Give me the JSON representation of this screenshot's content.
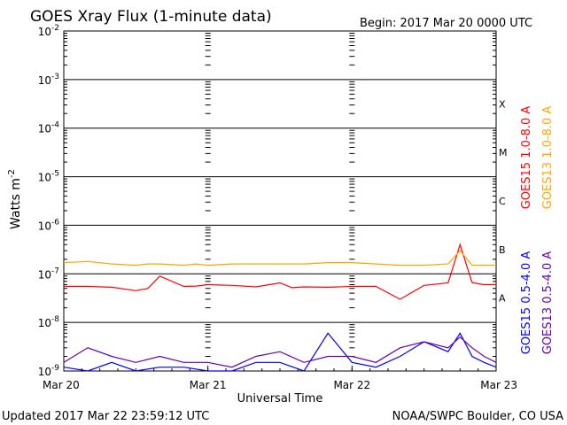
{
  "chart_data": {
    "type": "line",
    "title": "GOES Xray Flux (1-minute data)",
    "begin_label": "Begin:  2017 Mar 20 0000 UTC",
    "xlabel": "Universal Time",
    "ylabel": "Watts m",
    "ylabel_sup": "-2",
    "y_scale": "log",
    "ylim": [
      1e-09,
      0.01
    ],
    "y_ticks": [
      {
        "base": "10",
        "exp": "-2"
      },
      {
        "base": "10",
        "exp": "-3"
      },
      {
        "base": "10",
        "exp": "-4"
      },
      {
        "base": "10",
        "exp": "-5"
      },
      {
        "base": "10",
        "exp": "-6"
      },
      {
        "base": "10",
        "exp": "-7"
      },
      {
        "base": "10",
        "exp": "-8"
      },
      {
        "base": "10",
        "exp": "-9"
      }
    ],
    "x_range": [
      "2017-03-20 00:00",
      "2017-03-23 00:00"
    ],
    "x_ticks": [
      "Mar 20",
      "Mar 21",
      "Mar 22",
      "Mar 23"
    ],
    "flare_classes": [
      {
        "label": "X",
        "value": 0.0001
      },
      {
        "label": "M",
        "value": 1e-05
      },
      {
        "label": "C",
        "value": 1e-06
      },
      {
        "label": "B",
        "value": 1e-07
      },
      {
        "label": "A",
        "value": 1e-08
      }
    ],
    "series": [
      {
        "name": "GOES15 1.0-8.0 A",
        "color": "#ff0000",
        "x_hours": [
          0,
          4,
          8,
          12,
          14,
          16,
          20,
          22,
          24,
          28,
          32,
          36,
          38,
          40,
          44,
          48,
          52,
          56,
          60,
          64,
          66,
          68,
          70,
          72
        ],
        "values": [
          5.5e-08,
          5.5e-08,
          5.3e-08,
          4.5e-08,
          5e-08,
          9e-08,
          5.5e-08,
          5.6e-08,
          6e-08,
          5.8e-08,
          5.4e-08,
          6.5e-08,
          5.2e-08,
          5.4e-08,
          5.3e-08,
          5.5e-08,
          5.5e-08,
          3e-08,
          5.8e-08,
          6.5e-08,
          4e-07,
          6.6e-08,
          6e-08,
          6e-08
        ]
      },
      {
        "name": "GOES13 1.0-8.0 A",
        "color": "#ffa500",
        "x_hours": [
          0,
          4,
          8,
          12,
          14,
          16,
          20,
          22,
          24,
          28,
          32,
          36,
          38,
          40,
          44,
          48,
          52,
          56,
          60,
          64,
          66,
          68,
          70,
          72
        ],
        "values": [
          1.7e-07,
          1.8e-07,
          1.6e-07,
          1.5e-07,
          1.6e-07,
          1.6e-07,
          1.5e-07,
          1.6e-07,
          1.5e-07,
          1.6e-07,
          1.6e-07,
          1.6e-07,
          1.6e-07,
          1.6e-07,
          1.7e-07,
          1.7e-07,
          1.6e-07,
          1.5e-07,
          1.5e-07,
          1.6e-07,
          3e-07,
          1.5e-07,
          1.5e-07,
          1.5e-07
        ]
      },
      {
        "name": "GOES15 0.5-4.0 A",
        "color": "#0000ff",
        "x_hours": [
          0,
          4,
          8,
          12,
          16,
          20,
          24,
          28,
          32,
          36,
          40,
          44,
          48,
          52,
          56,
          60,
          64,
          66,
          68,
          70,
          72
        ],
        "values": [
          1.2e-09,
          1e-09,
          1.5e-09,
          1e-09,
          1.2e-09,
          1.2e-09,
          1e-09,
          1e-09,
          1.5e-09,
          1.5e-09,
          1e-09,
          6e-09,
          1.5e-09,
          1.2e-09,
          2e-09,
          4e-09,
          2.5e-09,
          6e-09,
          2e-09,
          1.5e-09,
          1.2e-09
        ]
      },
      {
        "name": "GOES13 0.5-4.0 A",
        "color": "#6600aa",
        "x_hours": [
          0,
          4,
          8,
          12,
          16,
          20,
          24,
          28,
          32,
          36,
          40,
          44,
          48,
          52,
          56,
          60,
          64,
          66,
          68,
          70,
          72
        ],
        "values": [
          1.5e-09,
          3e-09,
          2e-09,
          1.5e-09,
          2e-09,
          1.5e-09,
          1.5e-09,
          1.2e-09,
          2e-09,
          2.5e-09,
          1.5e-09,
          2e-09,
          2e-09,
          1.5e-09,
          3e-09,
          4e-09,
          3e-09,
          5e-09,
          3e-09,
          2e-09,
          1.5e-09
        ]
      }
    ]
  },
  "footer": {
    "updated": "Updated 2017 Mar 22 23:59:12 UTC",
    "credit": "NOAA/SWPC Boulder, CO USA"
  }
}
